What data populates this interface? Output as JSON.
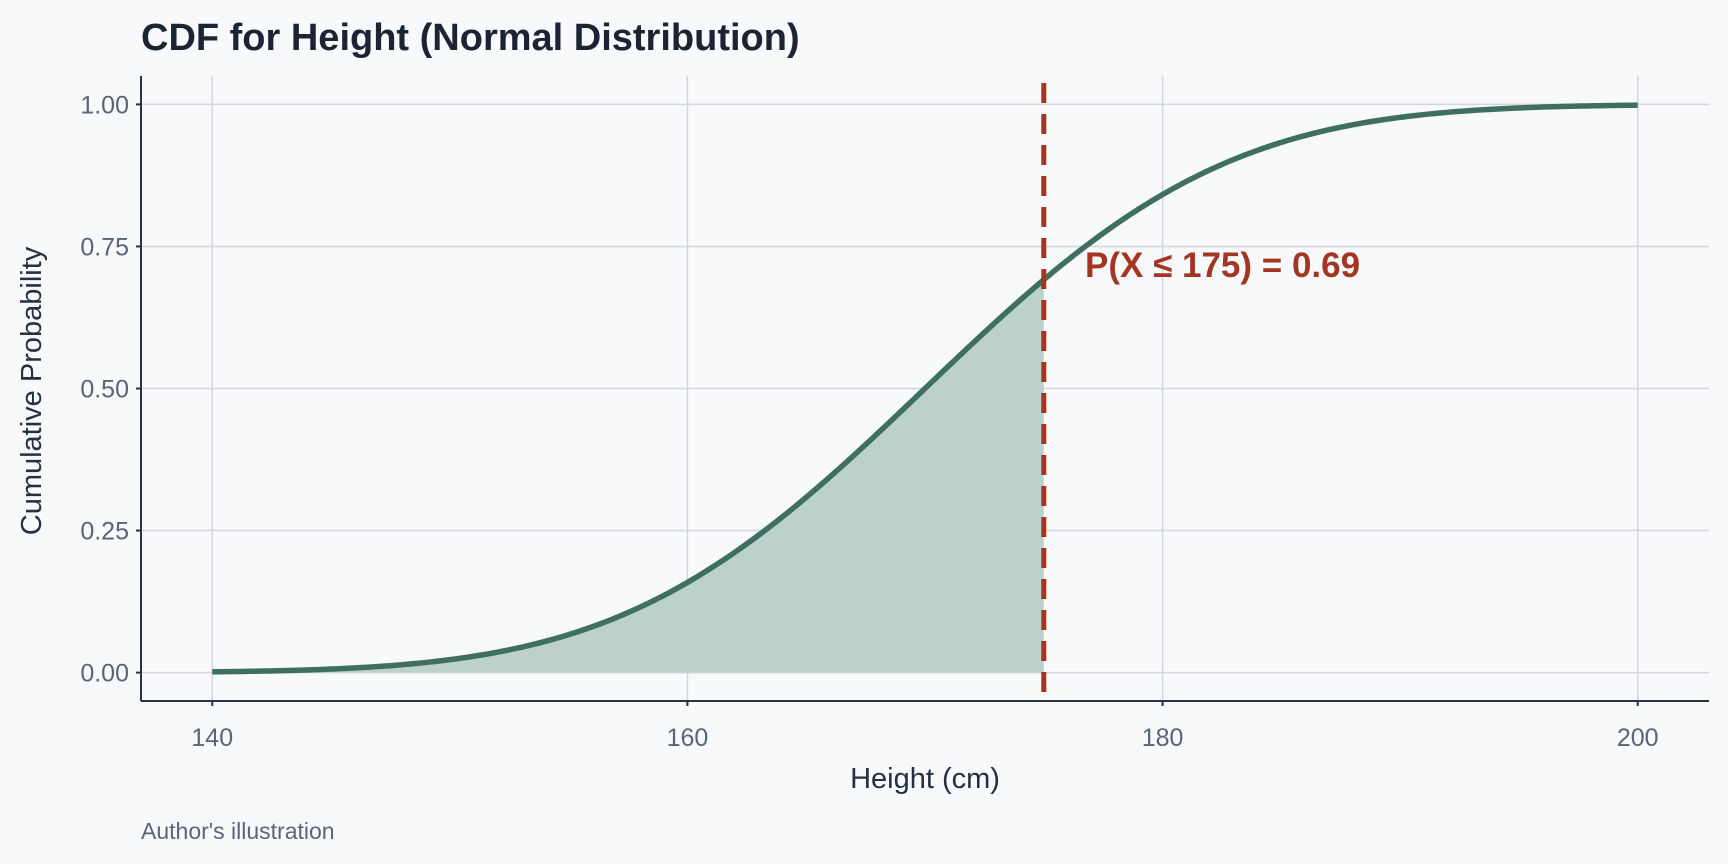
{
  "chart_data": {
    "type": "line",
    "title": "CDF for Height (Normal Distribution)",
    "xlabel": "Height (cm)",
    "ylabel": "Cumulative Probability",
    "xlim": [
      137,
      203
    ],
    "ylim": [
      -0.05,
      1.05
    ],
    "x_ticks": [
      140,
      160,
      180,
      200
    ],
    "y_ticks": [
      0.0,
      0.25,
      0.5,
      0.75,
      1.0
    ],
    "x_tick_labels": [
      "140",
      "160",
      "180",
      "200"
    ],
    "y_tick_labels": [
      "0.00",
      "0.25",
      "0.50",
      "0.75",
      "1.00"
    ],
    "grid": true,
    "series": [
      {
        "x": [
          140,
          142,
          144,
          146,
          148,
          150,
          152,
          154,
          156,
          158,
          160,
          162,
          164,
          166,
          168,
          170,
          172,
          174,
          175,
          176,
          178,
          180,
          182,
          184,
          186,
          188,
          190,
          192,
          194,
          196,
          198,
          200
        ],
        "y": [
          0.0013,
          0.0026,
          0.0047,
          0.0082,
          0.0139,
          0.0228,
          0.0359,
          0.0548,
          0.0808,
          0.1151,
          0.1587,
          0.2119,
          0.2743,
          0.3446,
          0.4207,
          0.5,
          0.5793,
          0.6554,
          0.6915,
          0.7257,
          0.7881,
          0.8413,
          0.8849,
          0.9192,
          0.9452,
          0.9641,
          0.9772,
          0.9861,
          0.9918,
          0.9953,
          0.9974,
          0.9987
        ]
      }
    ],
    "shaded_region": {
      "x_min": 140,
      "x_max": 175
    },
    "reference_line": {
      "x": 175,
      "style": "dashed"
    },
    "annotation": {
      "text": "P(X ≤ 175) = 0.69",
      "x": 175,
      "y": 0.69
    },
    "caption": "Author's illustration",
    "colors": {
      "curve": "#3f6f60",
      "fill": "#bcd1ca",
      "reference": "#a43523",
      "background": "#f7f9fb"
    }
  }
}
